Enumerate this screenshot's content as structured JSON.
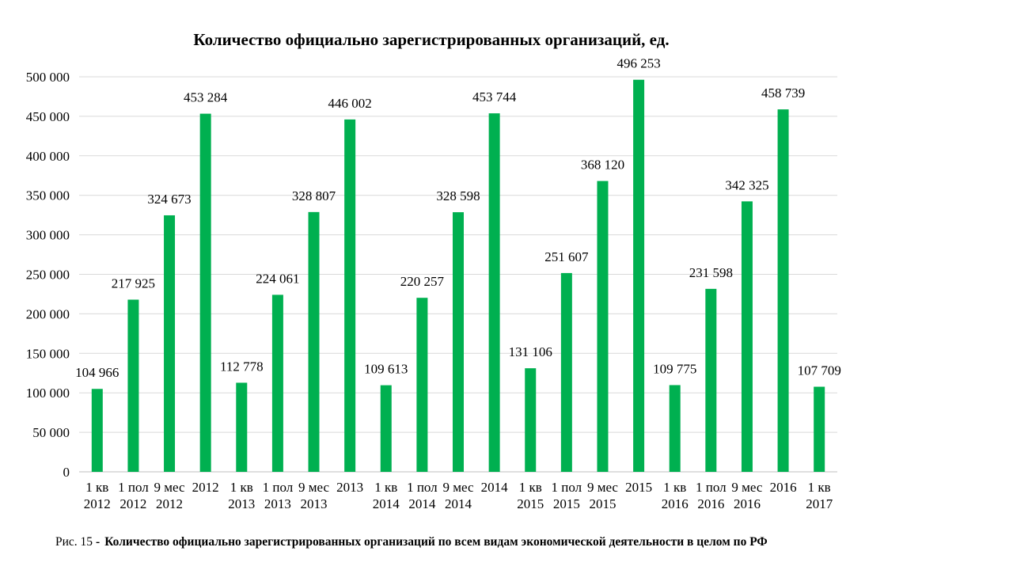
{
  "chart_data": {
    "type": "bar",
    "title": "Количество официально зарегистрированных организаций, ед.",
    "xlabel": "",
    "ylabel": "",
    "ylim": [
      0,
      500000
    ],
    "yticks": [
      0,
      50000,
      100000,
      150000,
      200000,
      250000,
      300000,
      350000,
      400000,
      450000,
      500000
    ],
    "ytick_labels": [
      "0",
      "50 000",
      "100 000",
      "150 000",
      "200 000",
      "250 000",
      "300 000",
      "350 000",
      "400 000",
      "450 000",
      "500 000"
    ],
    "grid": true,
    "legend": "none",
    "bar_color": "#00b050",
    "categories": [
      [
        "1 кв",
        "2012"
      ],
      [
        "1 пол",
        "2012"
      ],
      [
        "9 мес",
        "2012"
      ],
      [
        "2012"
      ],
      [
        "1 кв",
        "2013"
      ],
      [
        "1 пол",
        "2013"
      ],
      [
        "9 мес",
        "2013"
      ],
      [
        "2013"
      ],
      [
        "1 кв",
        "2014"
      ],
      [
        "1 пол",
        "2014"
      ],
      [
        "9 мес",
        "2014"
      ],
      [
        "2014"
      ],
      [
        "1 кв",
        "2015"
      ],
      [
        "1 пол",
        "2015"
      ],
      [
        "9 мес",
        "2015"
      ],
      [
        "2015"
      ],
      [
        "1 кв",
        "2016"
      ],
      [
        "1 пол",
        "2016"
      ],
      [
        "9 мес",
        "2016"
      ],
      [
        "2016"
      ],
      [
        "1 кв",
        "2017"
      ]
    ],
    "values": [
      104966,
      217925,
      324673,
      453284,
      112778,
      224061,
      328807,
      446002,
      109613,
      220257,
      328598,
      453744,
      131106,
      251607,
      368120,
      496253,
      109775,
      231598,
      342325,
      458739,
      107709
    ],
    "value_labels": [
      "104 966",
      "217 925",
      "324 673",
      "453 284",
      "112 778",
      "224 061",
      "328 807",
      "446 002",
      "109 613",
      "220 257",
      "328 598",
      "453 744",
      "131 106",
      "251 607",
      "368 120",
      "496 253",
      "109 775",
      "231 598",
      "342 325",
      "458 739",
      "107 709"
    ]
  },
  "caption": {
    "prefix": "Рис. 15",
    "separator": "-",
    "text": "Количество официально зарегистрированных организаций по всем видам экономической деятельности в целом по РФ"
  }
}
